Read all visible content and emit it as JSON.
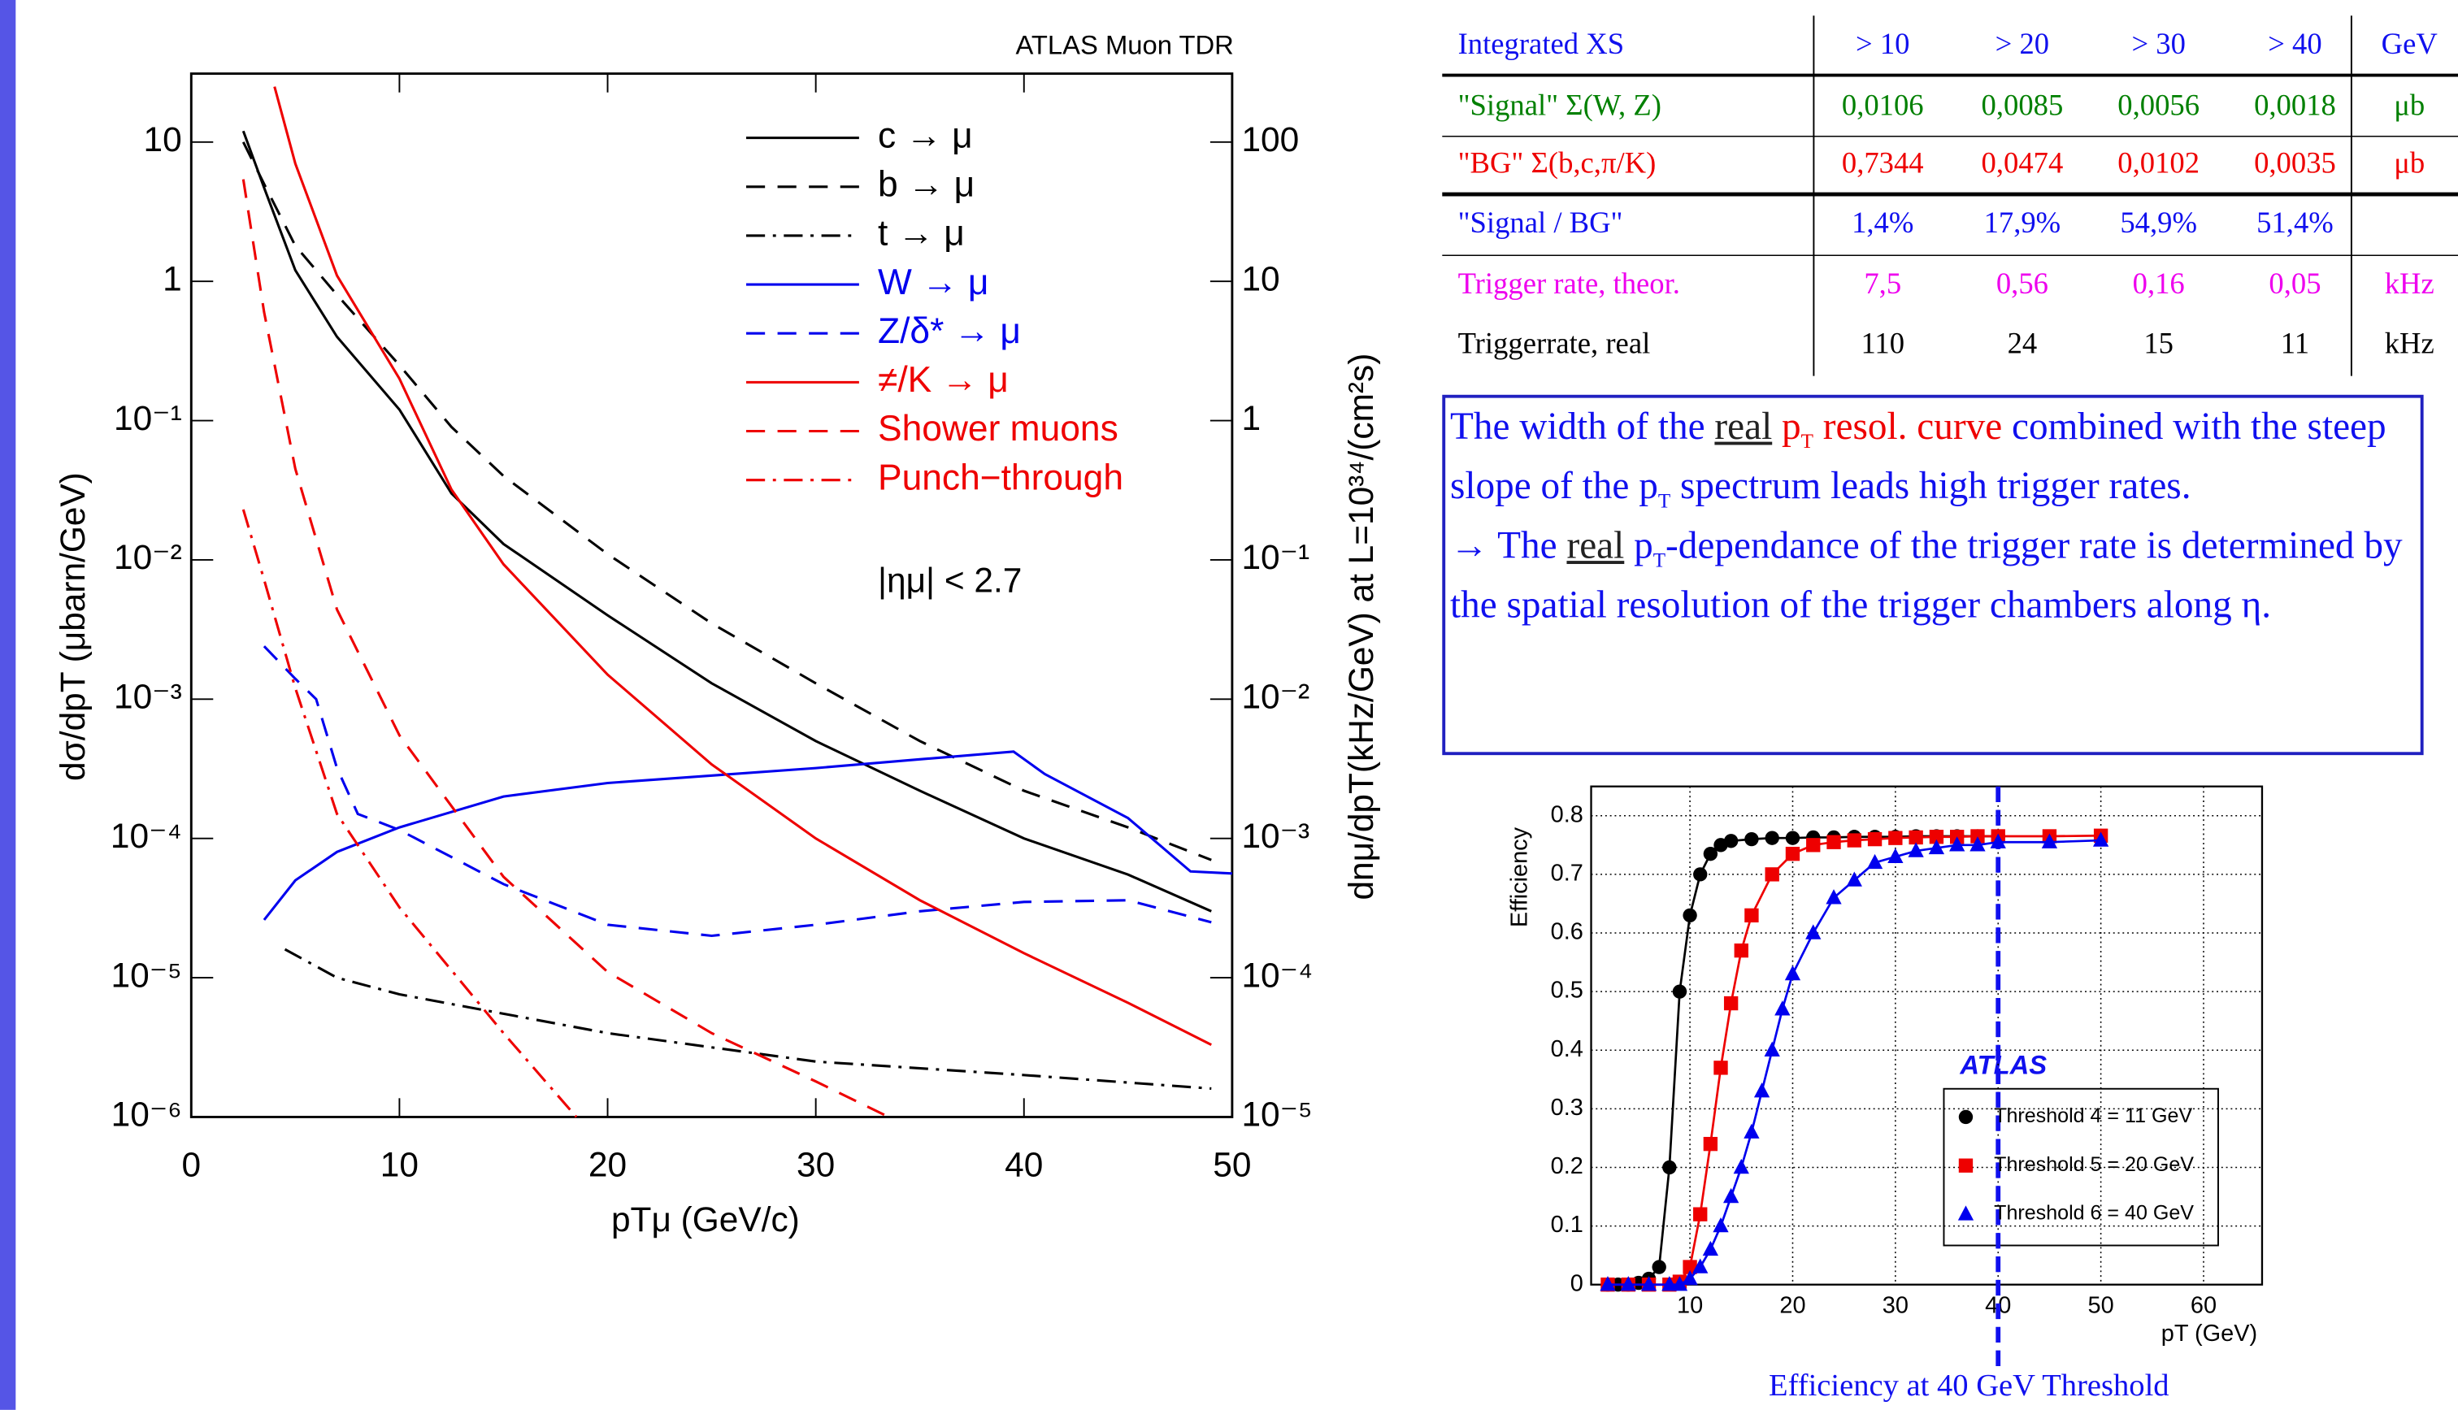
{
  "chart_data": [
    {
      "type": "line",
      "title": "ATLAS Muon TDR",
      "annotation": "|ημ| < 2.7",
      "x_label": "pTμ (GeV/c)",
      "y_label": "dσ/dpT (μbarn/GeV)",
      "y2_label": "dnμ/dpT(kHz/GeV) at L=10³⁴/(cm²s)",
      "xlim": [
        0,
        50
      ],
      "xticks": [
        0,
        10,
        20,
        30,
        40,
        50
      ],
      "ylim": [
        1e-06,
        31
      ],
      "log_y": true,
      "yticks": [
        {
          "value": 1e-06,
          "label": "10⁻⁶"
        },
        {
          "value": 1e-05,
          "label": "10⁻⁵"
        },
        {
          "value": 0.0001,
          "label": "10⁻⁴"
        },
        {
          "value": 0.001,
          "label": "10⁻³"
        },
        {
          "value": 0.01,
          "label": "10⁻²"
        },
        {
          "value": 0.1,
          "label": "10⁻¹"
        },
        1,
        10
      ],
      "y2lim": [
        1e-05,
        310
      ],
      "y2ticks": [
        {
          "value": 1e-05,
          "label": "10⁻⁵"
        },
        {
          "value": 0.0001,
          "label": "10⁻⁴"
        },
        {
          "value": 0.001,
          "label": "10⁻³"
        },
        {
          "value": 0.01,
          "label": "10⁻²"
        },
        {
          "value": 0.1,
          "label": "10⁻¹"
        },
        1,
        10,
        100
      ],
      "legend": "upper right",
      "series": [
        {
          "name": "c → μ",
          "color": "#000000",
          "dash": "solid",
          "x": [
            2.5,
            3.5,
            5,
            7,
            10,
            12.5,
            15,
            20,
            25,
            30,
            35,
            40,
            45,
            49
          ],
          "values": [
            12,
            4.7,
            1.2,
            0.4,
            0.12,
            0.03,
            0.013,
            0.004,
            0.0013,
            0.0005,
            0.00022,
            0.0001,
            5.5e-05,
            3e-05
          ]
        },
        {
          "name": "b → μ",
          "color": "#000000",
          "dash": "dashed",
          "x": [
            2.5,
            3.5,
            5,
            7,
            10,
            12.5,
            15,
            20,
            25,
            30,
            35,
            40,
            45,
            49
          ],
          "values": [
            10,
            5,
            1.8,
            0.8,
            0.25,
            0.09,
            0.04,
            0.011,
            0.0035,
            0.0013,
            0.0005,
            0.00022,
            0.00012,
            7e-05
          ]
        },
        {
          "name": "t → μ",
          "color": "#000000",
          "dash": "dashdot",
          "x": [
            4.5,
            7,
            10,
            20,
            30,
            40,
            49
          ],
          "values": [
            1.6e-05,
            1e-05,
            7.6e-06,
            4e-06,
            2.5e-06,
            2e-06,
            1.6e-06
          ]
        },
        {
          "name": "W → μ",
          "color": "#0000ee",
          "dash": "solid",
          "x": [
            3.5,
            5,
            7,
            10,
            15,
            20,
            30,
            35,
            39.5,
            41,
            45,
            48,
            50
          ],
          "values": [
            2.6e-05,
            5e-05,
            8e-05,
            0.00012,
            0.0002,
            0.00025,
            0.00032,
            0.00037,
            0.00042,
            0.00029,
            0.00014,
            5.8e-05,
            5.6e-05
          ]
        },
        {
          "name": "Z/δ* → μ",
          "color": "#0000ee",
          "dash": "dashed",
          "x": [
            3.5,
            5,
            6,
            7,
            8,
            10,
            15,
            20,
            25,
            30,
            35,
            40,
            45,
            49
          ],
          "values": [
            0.0024,
            0.0014,
            0.001,
            0.00032,
            0.00015,
            0.000115,
            4.7e-05,
            2.4e-05,
            2e-05,
            2.4e-05,
            3e-05,
            3.5e-05,
            3.6e-05,
            2.5e-05
          ]
        },
        {
          "name": "≠/K → μ",
          "color": "#ee0000",
          "dash": "solid",
          "x": [
            4,
            5,
            7,
            10,
            12.5,
            15,
            20,
            25,
            30,
            35,
            40,
            45,
            49
          ],
          "values": [
            25,
            7,
            1.1,
            0.2,
            0.032,
            0.0093,
            0.0015,
            0.00034,
            0.0001,
            3.6e-05,
            1.5e-05,
            6.6e-06,
            3.3e-06
          ]
        },
        {
          "name": "Shower muons",
          "color": "#ee0000",
          "dash": "dashed",
          "x": [
            2.5,
            3.5,
            5,
            7,
            10,
            15,
            20,
            25,
            30,
            33.5
          ],
          "values": [
            5.4,
            0.6,
            0.045,
            0.0044,
            0.00055,
            5.3e-05,
            1.1e-05,
            4e-06,
            1.8e-06,
            1e-06
          ]
        },
        {
          "name": "Punch−through",
          "color": "#ee0000",
          "dash": "dashdot",
          "x": [
            2.5,
            3.5,
            5,
            7,
            10,
            15,
            18.5
          ],
          "values": [
            0.023,
            0.0072,
            0.0012,
            0.00015,
            3.2e-05,
            4e-06,
            1e-06
          ]
        }
      ]
    },
    {
      "type": "scatter",
      "x_label": "pT (GeV)",
      "y_label": "Efficiency",
      "caption": "Efficiency at 40 GeV Threshold",
      "annotation": "ATLAS",
      "threshold": 40,
      "grid": true,
      "legend": "lower right",
      "xlim": [
        0,
        66
      ],
      "xticks": [
        10,
        20,
        30,
        40,
        50,
        60
      ],
      "ylim": [
        0,
        0.85
      ],
      "yticks": [
        0,
        0.1,
        0.2,
        0.3,
        0.4,
        0.5,
        0.6,
        0.7,
        0.8
      ],
      "series": [
        {
          "name": "Threshold 4 = 11 GeV",
          "color": "#000000",
          "marker": "circle",
          "x": [
            2,
            3,
            4,
            5,
            6,
            7,
            8,
            9,
            10,
            11,
            12,
            13,
            14,
            16,
            18,
            20,
            22,
            24,
            26,
            28,
            30,
            32,
            34,
            36,
            38,
            40
          ],
          "values": [
            0,
            0,
            0,
            0.003,
            0.01,
            0.03,
            0.2,
            0.5,
            0.63,
            0.7,
            0.735,
            0.75,
            0.757,
            0.76,
            0.762,
            0.762,
            0.763,
            0.763,
            0.764,
            0.764,
            0.764,
            0.765,
            0.765,
            0.765,
            0.765,
            0.765
          ]
        },
        {
          "name": "Threshold 5 = 20 GeV",
          "color": "#ee0000",
          "marker": "square",
          "x": [
            2,
            4,
            6,
            8,
            9,
            10,
            11,
            12,
            13,
            14,
            15,
            16,
            18,
            20,
            22,
            24,
            26,
            28,
            30,
            32,
            34,
            36,
            38,
            40,
            45,
            50
          ],
          "values": [
            0,
            0,
            0,
            0,
            0.005,
            0.03,
            0.12,
            0.24,
            0.37,
            0.48,
            0.57,
            0.63,
            0.7,
            0.735,
            0.75,
            0.755,
            0.758,
            0.76,
            0.762,
            0.763,
            0.764,
            0.764,
            0.765,
            0.765,
            0.765,
            0.766
          ]
        },
        {
          "name": "Threshold 6 = 40 GeV",
          "color": "#0000ee",
          "marker": "triangle",
          "x": [
            2,
            4,
            6,
            8,
            9,
            10,
            11,
            12,
            13,
            14,
            15,
            16,
            17,
            18,
            19,
            20,
            22,
            24,
            26,
            28,
            30,
            32,
            34,
            36,
            38,
            40,
            45,
            50
          ],
          "values": [
            0,
            0,
            0,
            0,
            0,
            0.01,
            0.03,
            0.06,
            0.1,
            0.15,
            0.2,
            0.26,
            0.33,
            0.4,
            0.47,
            0.53,
            0.6,
            0.66,
            0.69,
            0.72,
            0.73,
            0.74,
            0.745,
            0.75,
            0.75,
            0.755,
            0.755,
            0.758
          ]
        }
      ]
    }
  ],
  "table": {
    "header": [
      "Integrated XS",
      "> 10",
      "> 20",
      "> 30",
      "> 40",
      "GeV"
    ],
    "rows": [
      [
        "\"Signal\" Σ(W, Z)",
        "0,0106",
        "0,0085",
        "0,0056",
        "0,0018",
        "μb"
      ],
      [
        "\"BG\" Σ(b,c,π/K)",
        "0,7344",
        "0,0474",
        "0,0102",
        "0,0035",
        "μb"
      ],
      [
        "\"Signal / BG\"",
        "1,4%",
        "17,9%",
        "54,9%",
        "51,4%"
      ],
      [
        "Trigger rate, theor.",
        "7,5",
        "0,56",
        "0,16",
        "0,05",
        "kHz"
      ],
      [
        "Triggerrate, real",
        "110",
        "24",
        "15",
        "11",
        "kHz"
      ]
    ]
  },
  "text_box": {
    "paragraphs": [
      [
        "The width of the ",
        "real",
        " p",
        "T",
        " resol. curve",
        " combined with the steep slope of the p",
        "T",
        " spectrum leads high trigger rates."
      ],
      [
        "→ The ",
        "real",
        " p",
        "T",
        "-dependance of the trigger rate is determined by the spatial resolution of the trigger chambers along η."
      ]
    ]
  }
}
